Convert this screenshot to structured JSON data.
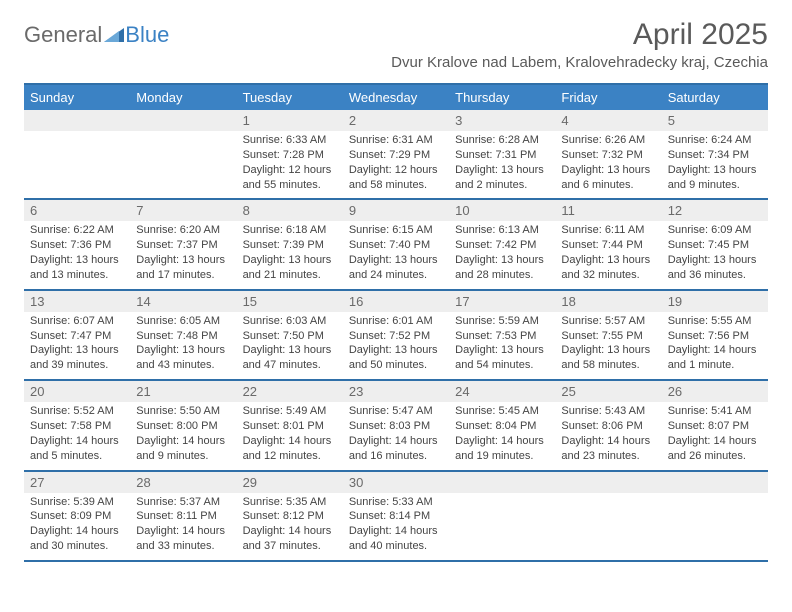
{
  "colors": {
    "header_bg": "#3b82c4",
    "header_text": "#ffffff",
    "rule": "#2f6fa8",
    "daynum_bg": "#eeeeee",
    "daynum_text": "#6a6a6a",
    "body_text": "#444444",
    "title_text": "#5a5a5a",
    "logo_gray": "#6a6a6a",
    "logo_blue": "#3b82c4",
    "page_bg": "#ffffff"
  },
  "typography": {
    "month_title_fontsize": 30,
    "location_fontsize": 15,
    "dow_fontsize": 13,
    "daynum_fontsize": 13,
    "info_fontsize": 11
  },
  "logo": {
    "text_gray": "General",
    "text_blue": "Blue"
  },
  "title": "April 2025",
  "location": "Dvur Kralove nad Labem, Kralovehradecky kraj, Czechia",
  "days_of_week": [
    "Sunday",
    "Monday",
    "Tuesday",
    "Wednesday",
    "Thursday",
    "Friday",
    "Saturday"
  ],
  "weeks": [
    [
      {
        "blank": true
      },
      {
        "blank": true
      },
      {
        "n": "1",
        "sunrise": "Sunrise: 6:33 AM",
        "sunset": "Sunset: 7:28 PM",
        "daylight": "Daylight: 12 hours and 55 minutes."
      },
      {
        "n": "2",
        "sunrise": "Sunrise: 6:31 AM",
        "sunset": "Sunset: 7:29 PM",
        "daylight": "Daylight: 12 hours and 58 minutes."
      },
      {
        "n": "3",
        "sunrise": "Sunrise: 6:28 AM",
        "sunset": "Sunset: 7:31 PM",
        "daylight": "Daylight: 13 hours and 2 minutes."
      },
      {
        "n": "4",
        "sunrise": "Sunrise: 6:26 AM",
        "sunset": "Sunset: 7:32 PM",
        "daylight": "Daylight: 13 hours and 6 minutes."
      },
      {
        "n": "5",
        "sunrise": "Sunrise: 6:24 AM",
        "sunset": "Sunset: 7:34 PM",
        "daylight": "Daylight: 13 hours and 9 minutes."
      }
    ],
    [
      {
        "n": "6",
        "sunrise": "Sunrise: 6:22 AM",
        "sunset": "Sunset: 7:36 PM",
        "daylight": "Daylight: 13 hours and 13 minutes."
      },
      {
        "n": "7",
        "sunrise": "Sunrise: 6:20 AM",
        "sunset": "Sunset: 7:37 PM",
        "daylight": "Daylight: 13 hours and 17 minutes."
      },
      {
        "n": "8",
        "sunrise": "Sunrise: 6:18 AM",
        "sunset": "Sunset: 7:39 PM",
        "daylight": "Daylight: 13 hours and 21 minutes."
      },
      {
        "n": "9",
        "sunrise": "Sunrise: 6:15 AM",
        "sunset": "Sunset: 7:40 PM",
        "daylight": "Daylight: 13 hours and 24 minutes."
      },
      {
        "n": "10",
        "sunrise": "Sunrise: 6:13 AM",
        "sunset": "Sunset: 7:42 PM",
        "daylight": "Daylight: 13 hours and 28 minutes."
      },
      {
        "n": "11",
        "sunrise": "Sunrise: 6:11 AM",
        "sunset": "Sunset: 7:44 PM",
        "daylight": "Daylight: 13 hours and 32 minutes."
      },
      {
        "n": "12",
        "sunrise": "Sunrise: 6:09 AM",
        "sunset": "Sunset: 7:45 PM",
        "daylight": "Daylight: 13 hours and 36 minutes."
      }
    ],
    [
      {
        "n": "13",
        "sunrise": "Sunrise: 6:07 AM",
        "sunset": "Sunset: 7:47 PM",
        "daylight": "Daylight: 13 hours and 39 minutes."
      },
      {
        "n": "14",
        "sunrise": "Sunrise: 6:05 AM",
        "sunset": "Sunset: 7:48 PM",
        "daylight": "Daylight: 13 hours and 43 minutes."
      },
      {
        "n": "15",
        "sunrise": "Sunrise: 6:03 AM",
        "sunset": "Sunset: 7:50 PM",
        "daylight": "Daylight: 13 hours and 47 minutes."
      },
      {
        "n": "16",
        "sunrise": "Sunrise: 6:01 AM",
        "sunset": "Sunset: 7:52 PM",
        "daylight": "Daylight: 13 hours and 50 minutes."
      },
      {
        "n": "17",
        "sunrise": "Sunrise: 5:59 AM",
        "sunset": "Sunset: 7:53 PM",
        "daylight": "Daylight: 13 hours and 54 minutes."
      },
      {
        "n": "18",
        "sunrise": "Sunrise: 5:57 AM",
        "sunset": "Sunset: 7:55 PM",
        "daylight": "Daylight: 13 hours and 58 minutes."
      },
      {
        "n": "19",
        "sunrise": "Sunrise: 5:55 AM",
        "sunset": "Sunset: 7:56 PM",
        "daylight": "Daylight: 14 hours and 1 minute."
      }
    ],
    [
      {
        "n": "20",
        "sunrise": "Sunrise: 5:52 AM",
        "sunset": "Sunset: 7:58 PM",
        "daylight": "Daylight: 14 hours and 5 minutes."
      },
      {
        "n": "21",
        "sunrise": "Sunrise: 5:50 AM",
        "sunset": "Sunset: 8:00 PM",
        "daylight": "Daylight: 14 hours and 9 minutes."
      },
      {
        "n": "22",
        "sunrise": "Sunrise: 5:49 AM",
        "sunset": "Sunset: 8:01 PM",
        "daylight": "Daylight: 14 hours and 12 minutes."
      },
      {
        "n": "23",
        "sunrise": "Sunrise: 5:47 AM",
        "sunset": "Sunset: 8:03 PM",
        "daylight": "Daylight: 14 hours and 16 minutes."
      },
      {
        "n": "24",
        "sunrise": "Sunrise: 5:45 AM",
        "sunset": "Sunset: 8:04 PM",
        "daylight": "Daylight: 14 hours and 19 minutes."
      },
      {
        "n": "25",
        "sunrise": "Sunrise: 5:43 AM",
        "sunset": "Sunset: 8:06 PM",
        "daylight": "Daylight: 14 hours and 23 minutes."
      },
      {
        "n": "26",
        "sunrise": "Sunrise: 5:41 AM",
        "sunset": "Sunset: 8:07 PM",
        "daylight": "Daylight: 14 hours and 26 minutes."
      }
    ],
    [
      {
        "n": "27",
        "sunrise": "Sunrise: 5:39 AM",
        "sunset": "Sunset: 8:09 PM",
        "daylight": "Daylight: 14 hours and 30 minutes."
      },
      {
        "n": "28",
        "sunrise": "Sunrise: 5:37 AM",
        "sunset": "Sunset: 8:11 PM",
        "daylight": "Daylight: 14 hours and 33 minutes."
      },
      {
        "n": "29",
        "sunrise": "Sunrise: 5:35 AM",
        "sunset": "Sunset: 8:12 PM",
        "daylight": "Daylight: 14 hours and 37 minutes."
      },
      {
        "n": "30",
        "sunrise": "Sunrise: 5:33 AM",
        "sunset": "Sunset: 8:14 PM",
        "daylight": "Daylight: 14 hours and 40 minutes."
      },
      {
        "blank": true
      },
      {
        "blank": true
      },
      {
        "blank": true
      }
    ]
  ]
}
